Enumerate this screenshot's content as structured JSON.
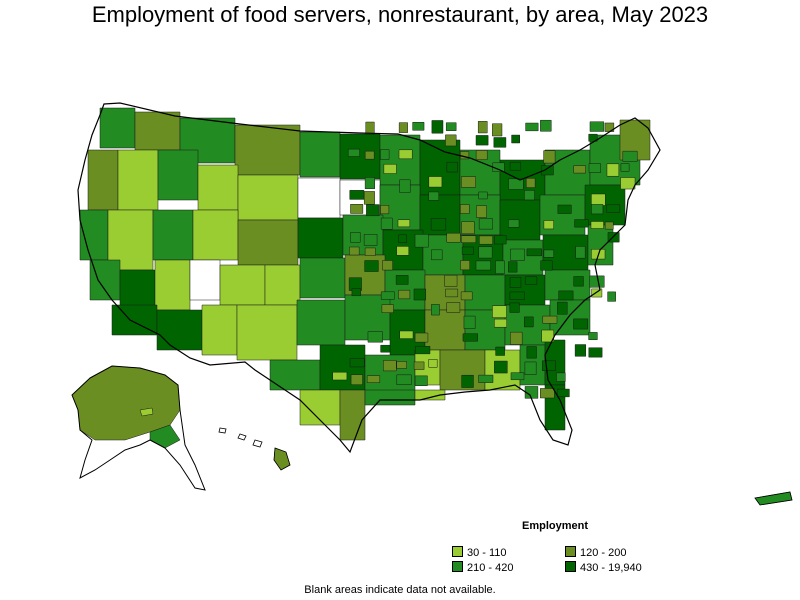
{
  "title": "Employment of food servers, nonrestaurant, by area, May 2023",
  "legend": {
    "title": "Employment",
    "items": [
      {
        "label": "30 - 110",
        "color": "#9acd32"
      },
      {
        "label": "120 - 200",
        "color": "#6b8e23"
      },
      {
        "label": "210 - 420",
        "color": "#228b22"
      },
      {
        "label": "430 - 19,940",
        "color": "#006400"
      }
    ]
  },
  "footnote": "Blank areas indicate data not available.",
  "map": {
    "outline_color": "#000000",
    "no_data_color": "#ffffff"
  }
}
